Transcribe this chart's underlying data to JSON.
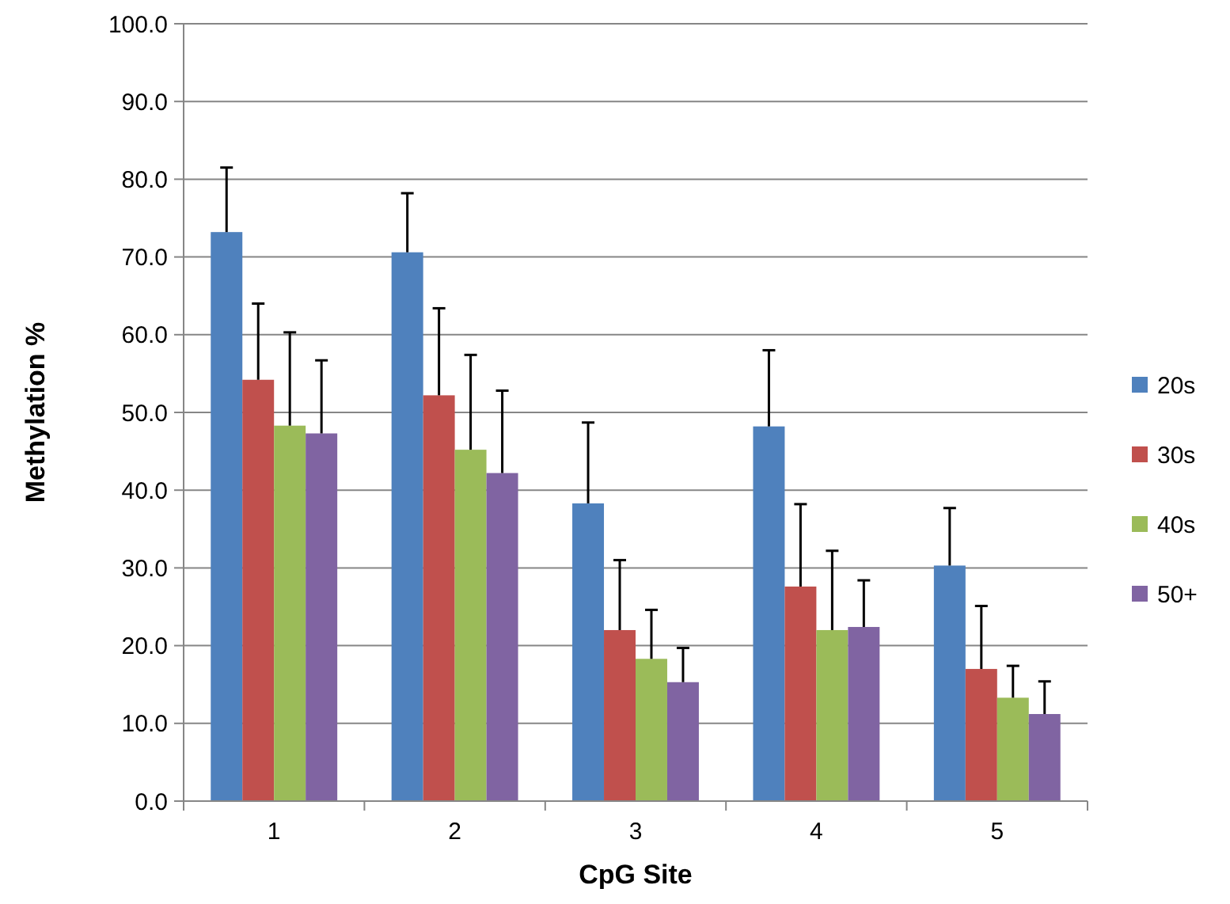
{
  "chart_data": {
    "type": "bar",
    "xlabel": "CpG Site",
    "ylabel": "Methylation %",
    "categories": [
      "1",
      "2",
      "3",
      "4",
      "5"
    ],
    "ylim": [
      0,
      100
    ],
    "yticks": [
      {
        "value": 0,
        "label": "0.0"
      },
      {
        "value": 10,
        "label": "10.0"
      },
      {
        "value": 20,
        "label": "20.0"
      },
      {
        "value": 30,
        "label": "30.0"
      },
      {
        "value": 40,
        "label": "40.0"
      },
      {
        "value": 50,
        "label": "50.0"
      },
      {
        "value": 60,
        "label": "60.0"
      },
      {
        "value": 70,
        "label": "70.0"
      },
      {
        "value": 80,
        "label": "80.0"
      },
      {
        "value": 90,
        "label": "90.0"
      },
      {
        "value": 100,
        "label": "100.0"
      }
    ],
    "grid": "y",
    "legend": "right",
    "series": [
      {
        "name": "20s",
        "color": "#4f81bd",
        "values": [
          73.2,
          70.6,
          38.3,
          48.2,
          30.3
        ],
        "errors": [
          [
            73.2,
            81.5
          ],
          [
            70.6,
            78.2
          ],
          [
            38.3,
            48.7
          ],
          [
            48.2,
            58.0
          ],
          [
            30.3,
            37.7
          ]
        ]
      },
      {
        "name": "30s",
        "color": "#c0504d",
        "values": [
          54.2,
          52.2,
          22.0,
          27.6,
          17.0
        ],
        "errors": [
          [
            54.2,
            64.0
          ],
          [
            52.2,
            63.4
          ],
          [
            22.0,
            31.0
          ],
          [
            27.6,
            38.2
          ],
          [
            17.0,
            25.1
          ]
        ]
      },
      {
        "name": "40s",
        "color": "#9bbb59",
        "values": [
          48.3,
          45.2,
          18.3,
          22.0,
          13.3
        ],
        "errors": [
          [
            48.3,
            60.3
          ],
          [
            45.2,
            57.4
          ],
          [
            18.3,
            24.6
          ],
          [
            22.0,
            32.2
          ],
          [
            13.3,
            17.4
          ]
        ]
      },
      {
        "name": "50+",
        "color": "#8064a2",
        "values": [
          47.3,
          42.2,
          15.3,
          22.4,
          11.2
        ],
        "errors": [
          [
            47.3,
            56.7
          ],
          [
            42.2,
            52.8
          ],
          [
            15.3,
            19.7
          ],
          [
            22.4,
            28.4
          ],
          [
            11.2,
            15.4
          ]
        ]
      }
    ]
  }
}
